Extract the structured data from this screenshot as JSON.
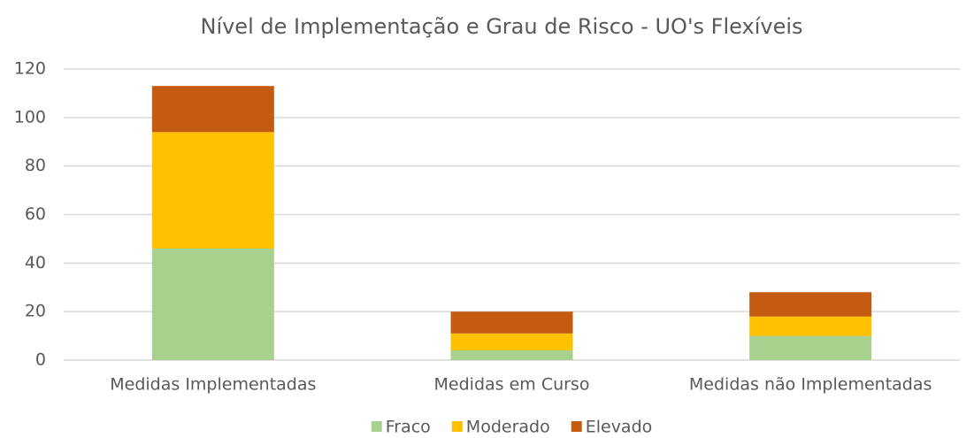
{
  "chart_data": {
    "type": "stacked_bar",
    "title": "Nível de Implementação e Grau de Risco -  UO's Flexíveis",
    "categories": [
      "Medidas Implementadas",
      "Medidas em Curso",
      "Medidas não Implementadas"
    ],
    "series": [
      {
        "name": "Fraco",
        "color": "#a9d18e",
        "values": [
          46,
          4,
          10
        ]
      },
      {
        "name": "Moderado",
        "color": "#ffc000",
        "values": [
          48,
          7,
          8
        ]
      },
      {
        "name": "Elevado",
        "color": "#c55a11",
        "values": [
          19,
          9,
          10
        ]
      }
    ],
    "ylim": [
      0,
      120
    ],
    "yticks": [
      0,
      20,
      40,
      60,
      80,
      100,
      120
    ],
    "grid": true,
    "legend": "bottom"
  }
}
